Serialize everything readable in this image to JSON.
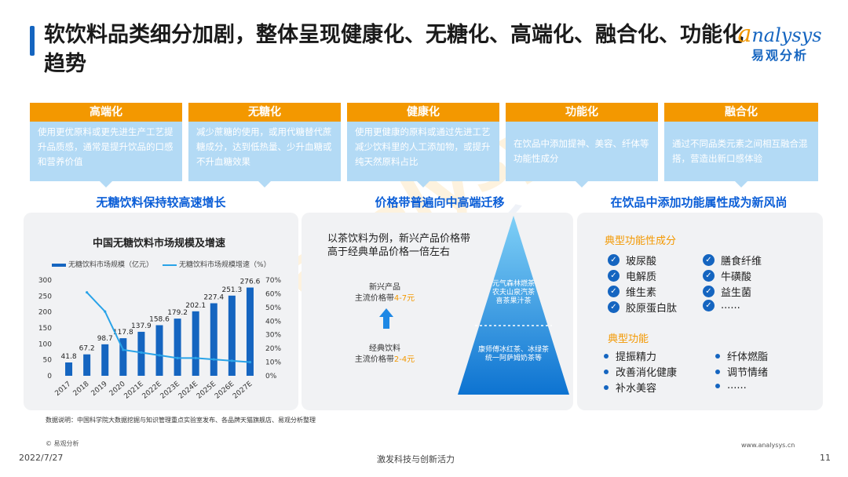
{
  "title": "软饮料品类细分加剧，整体呈现健康化、无糖化、高端化、融合化、功能化趋势",
  "logo": {
    "en_first": "a",
    "en_rest": "nalysys",
    "cn": "易观分析"
  },
  "trends": [
    {
      "title": "高端化",
      "desc": "使用更优原料或更先进生产工艺提升品质感，通常是提升饮品的口感和营养价值"
    },
    {
      "title": "无糖化",
      "desc": "减少蔗糖的使用，或用代糖替代蔗糖成分，达到低热量、少升血糖或不升血糖效果"
    },
    {
      "title": "健康化",
      "desc": "使用更健康的原料或通过先进工艺减少饮料里的人工添加物，或提升纯天然原料占比"
    },
    {
      "title": "功能化",
      "desc": "在饮品中添加提神、美容、纤体等功能性成分"
    },
    {
      "title": "融合化",
      "desc": "通过不同品类元素之间相互融合混搭，营造出新口感体验"
    }
  ],
  "sections": {
    "left": "无糖饮料保持较高速增长",
    "middle": "价格带普遍向中高端迁移",
    "right": "在饮品中添加功能属性成为新风尚"
  },
  "chart_data": {
    "type": "bar",
    "title": "中国无糖饮料市场规模及增速",
    "categories": [
      "2017",
      "2018",
      "2019",
      "2020",
      "2021E",
      "2022E",
      "2023E",
      "2024E",
      "2025E",
      "2026E",
      "2027E"
    ],
    "series": [
      {
        "name": "无糖饮料市场规模（亿元）",
        "type": "bar",
        "axis": "left",
        "values": [
          41.8,
          67.2,
          98.7,
          117.8,
          137.9,
          158.6,
          179.2,
          202.1,
          227.4,
          251.3,
          276.6
        ]
      },
      {
        "name": "无糖饮料市场规模增速（%）",
        "type": "line",
        "axis": "right",
        "values": [
          null,
          61,
          47,
          19,
          17,
          15,
          13,
          13,
          12,
          11,
          10
        ]
      }
    ],
    "y_left": {
      "ticks": [
        "0",
        "50",
        "100",
        "150",
        "200",
        "250",
        "300"
      ],
      "range": [
        0,
        300
      ]
    },
    "y_right": {
      "ticks": [
        "0%",
        "10%",
        "20%",
        "30%",
        "40%",
        "50%",
        "60%",
        "70%"
      ],
      "range": [
        0,
        70
      ]
    },
    "colors": {
      "bar": "#1565c0",
      "line": "#29a3e8"
    }
  },
  "pyramid": {
    "intro": "以茶饮料为例，新兴产品价格带高于经典单品价格一倍左右",
    "new_label": "新兴产品",
    "new_price_prefix": "主流价格带",
    "new_price": "4-7元",
    "classic_label": "经典饮料",
    "classic_price_prefix": "主流价格带",
    "classic_price": "2-4元",
    "top_products": [
      "元气森林燃茶",
      "农夫山泉汽茶",
      "喜茶果汁茶"
    ],
    "bottom_products": [
      "康师傅冰红茶、冰绿茶",
      "统一阿萨姆奶茶等"
    ]
  },
  "functional": {
    "ingredients_title": "典型功能性成分",
    "ingredients_left": [
      "玻尿酸",
      "电解质",
      "维生素",
      "胶原蛋白肽"
    ],
    "ingredients_right": [
      "膳食纤维",
      "牛磺酸",
      "益生菌",
      "......"
    ],
    "functions_title": "典型功能",
    "functions_left": [
      "提振精力",
      "改善消化健康",
      "补水美容"
    ],
    "functions_right": [
      "纤体燃脂",
      "调节情绪",
      "......"
    ]
  },
  "footer": {
    "note": "数据说明：中国科学院大数据挖掘与知识管理重点实验室发布、各品牌天猫旗舰店、易观分析整理",
    "copyright": "© 易观分析",
    "date": "2022/7/27",
    "slogan": "激发科技与创新活力",
    "url": "www.analysys.cn",
    "page": "11"
  },
  "watermark": {
    "line1": "analysys",
    "line2": "易观分析"
  }
}
